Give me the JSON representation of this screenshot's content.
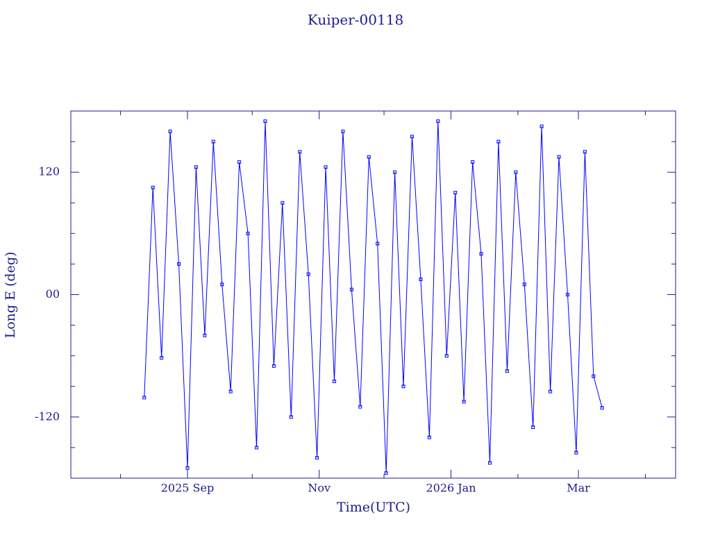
{
  "chart_data": {
    "type": "line",
    "title": "Kuiper-00118",
    "x_label": "Time(UTC)",
    "y_label": "Long E (deg)",
    "xlim": [
      "2025-07-09",
      "2026-04-15"
    ],
    "xticks": [
      {
        "value": "2025-09-01",
        "label": "2025 Sep"
      },
      {
        "value": "2025-11-01",
        "label": "Nov"
      },
      {
        "value": "2026-01-01",
        "label": "2026 Jan"
      },
      {
        "value": "2026-03-01",
        "label": "Mar"
      }
    ],
    "xminorticks": [
      "2025-08-01",
      "2025-10-01",
      "2025-12-01",
      "2026-02-01",
      "2026-04-01"
    ],
    "ylim": [
      -180,
      180
    ],
    "yticks": [
      -120,
      {
        "value": 0,
        "label": "00"
      },
      120
    ],
    "yminorticks": [
      -150,
      -90,
      -60,
      -30,
      30,
      60,
      90,
      150
    ],
    "series": [
      {
        "name": "Kuiper-00118",
        "color": "#0000ff",
        "x": [
          "2025-08-12",
          "2025-08-16",
          "2025-08-20",
          "2025-08-24",
          "2025-08-28",
          "2025-09-01",
          "2025-09-05",
          "2025-09-09",
          "2025-09-13",
          "2025-09-17",
          "2025-09-21",
          "2025-09-25",
          "2025-09-29",
          "2025-10-03",
          "2025-10-07",
          "2025-10-11",
          "2025-10-15",
          "2025-10-19",
          "2025-10-23",
          "2025-10-27",
          "2025-10-31",
          "2025-11-04",
          "2025-11-08",
          "2025-11-12",
          "2025-11-16",
          "2025-11-20",
          "2025-11-24",
          "2025-11-28",
          "2025-12-02",
          "2025-12-06",
          "2025-12-10",
          "2025-12-14",
          "2025-12-18",
          "2025-12-22",
          "2025-12-26",
          "2025-12-30",
          "2026-01-03",
          "2026-01-07",
          "2026-01-11",
          "2026-01-15",
          "2026-01-19",
          "2026-01-23",
          "2026-01-27",
          "2026-01-31",
          "2026-02-04",
          "2026-02-08",
          "2026-02-12",
          "2026-02-16",
          "2026-02-20",
          "2026-02-24",
          "2026-02-28",
          "2026-03-04",
          "2026-03-08",
          "2026-03-12"
        ],
        "values": [
          -101,
          105,
          -62,
          160,
          30,
          -170,
          125,
          -40,
          150,
          10,
          -95,
          130,
          60,
          -150,
          170,
          -70,
          90,
          -120,
          140,
          20,
          -160,
          125,
          -85,
          160,
          5,
          -110,
          135,
          50,
          -175,
          120,
          -90,
          155,
          15,
          -140,
          170,
          -60,
          100,
          -105,
          130,
          40,
          -165,
          150,
          -75,
          120,
          10,
          -130,
          165,
          -95,
          135,
          0,
          -155,
          140,
          -80,
          -111
        ]
      }
    ]
  }
}
